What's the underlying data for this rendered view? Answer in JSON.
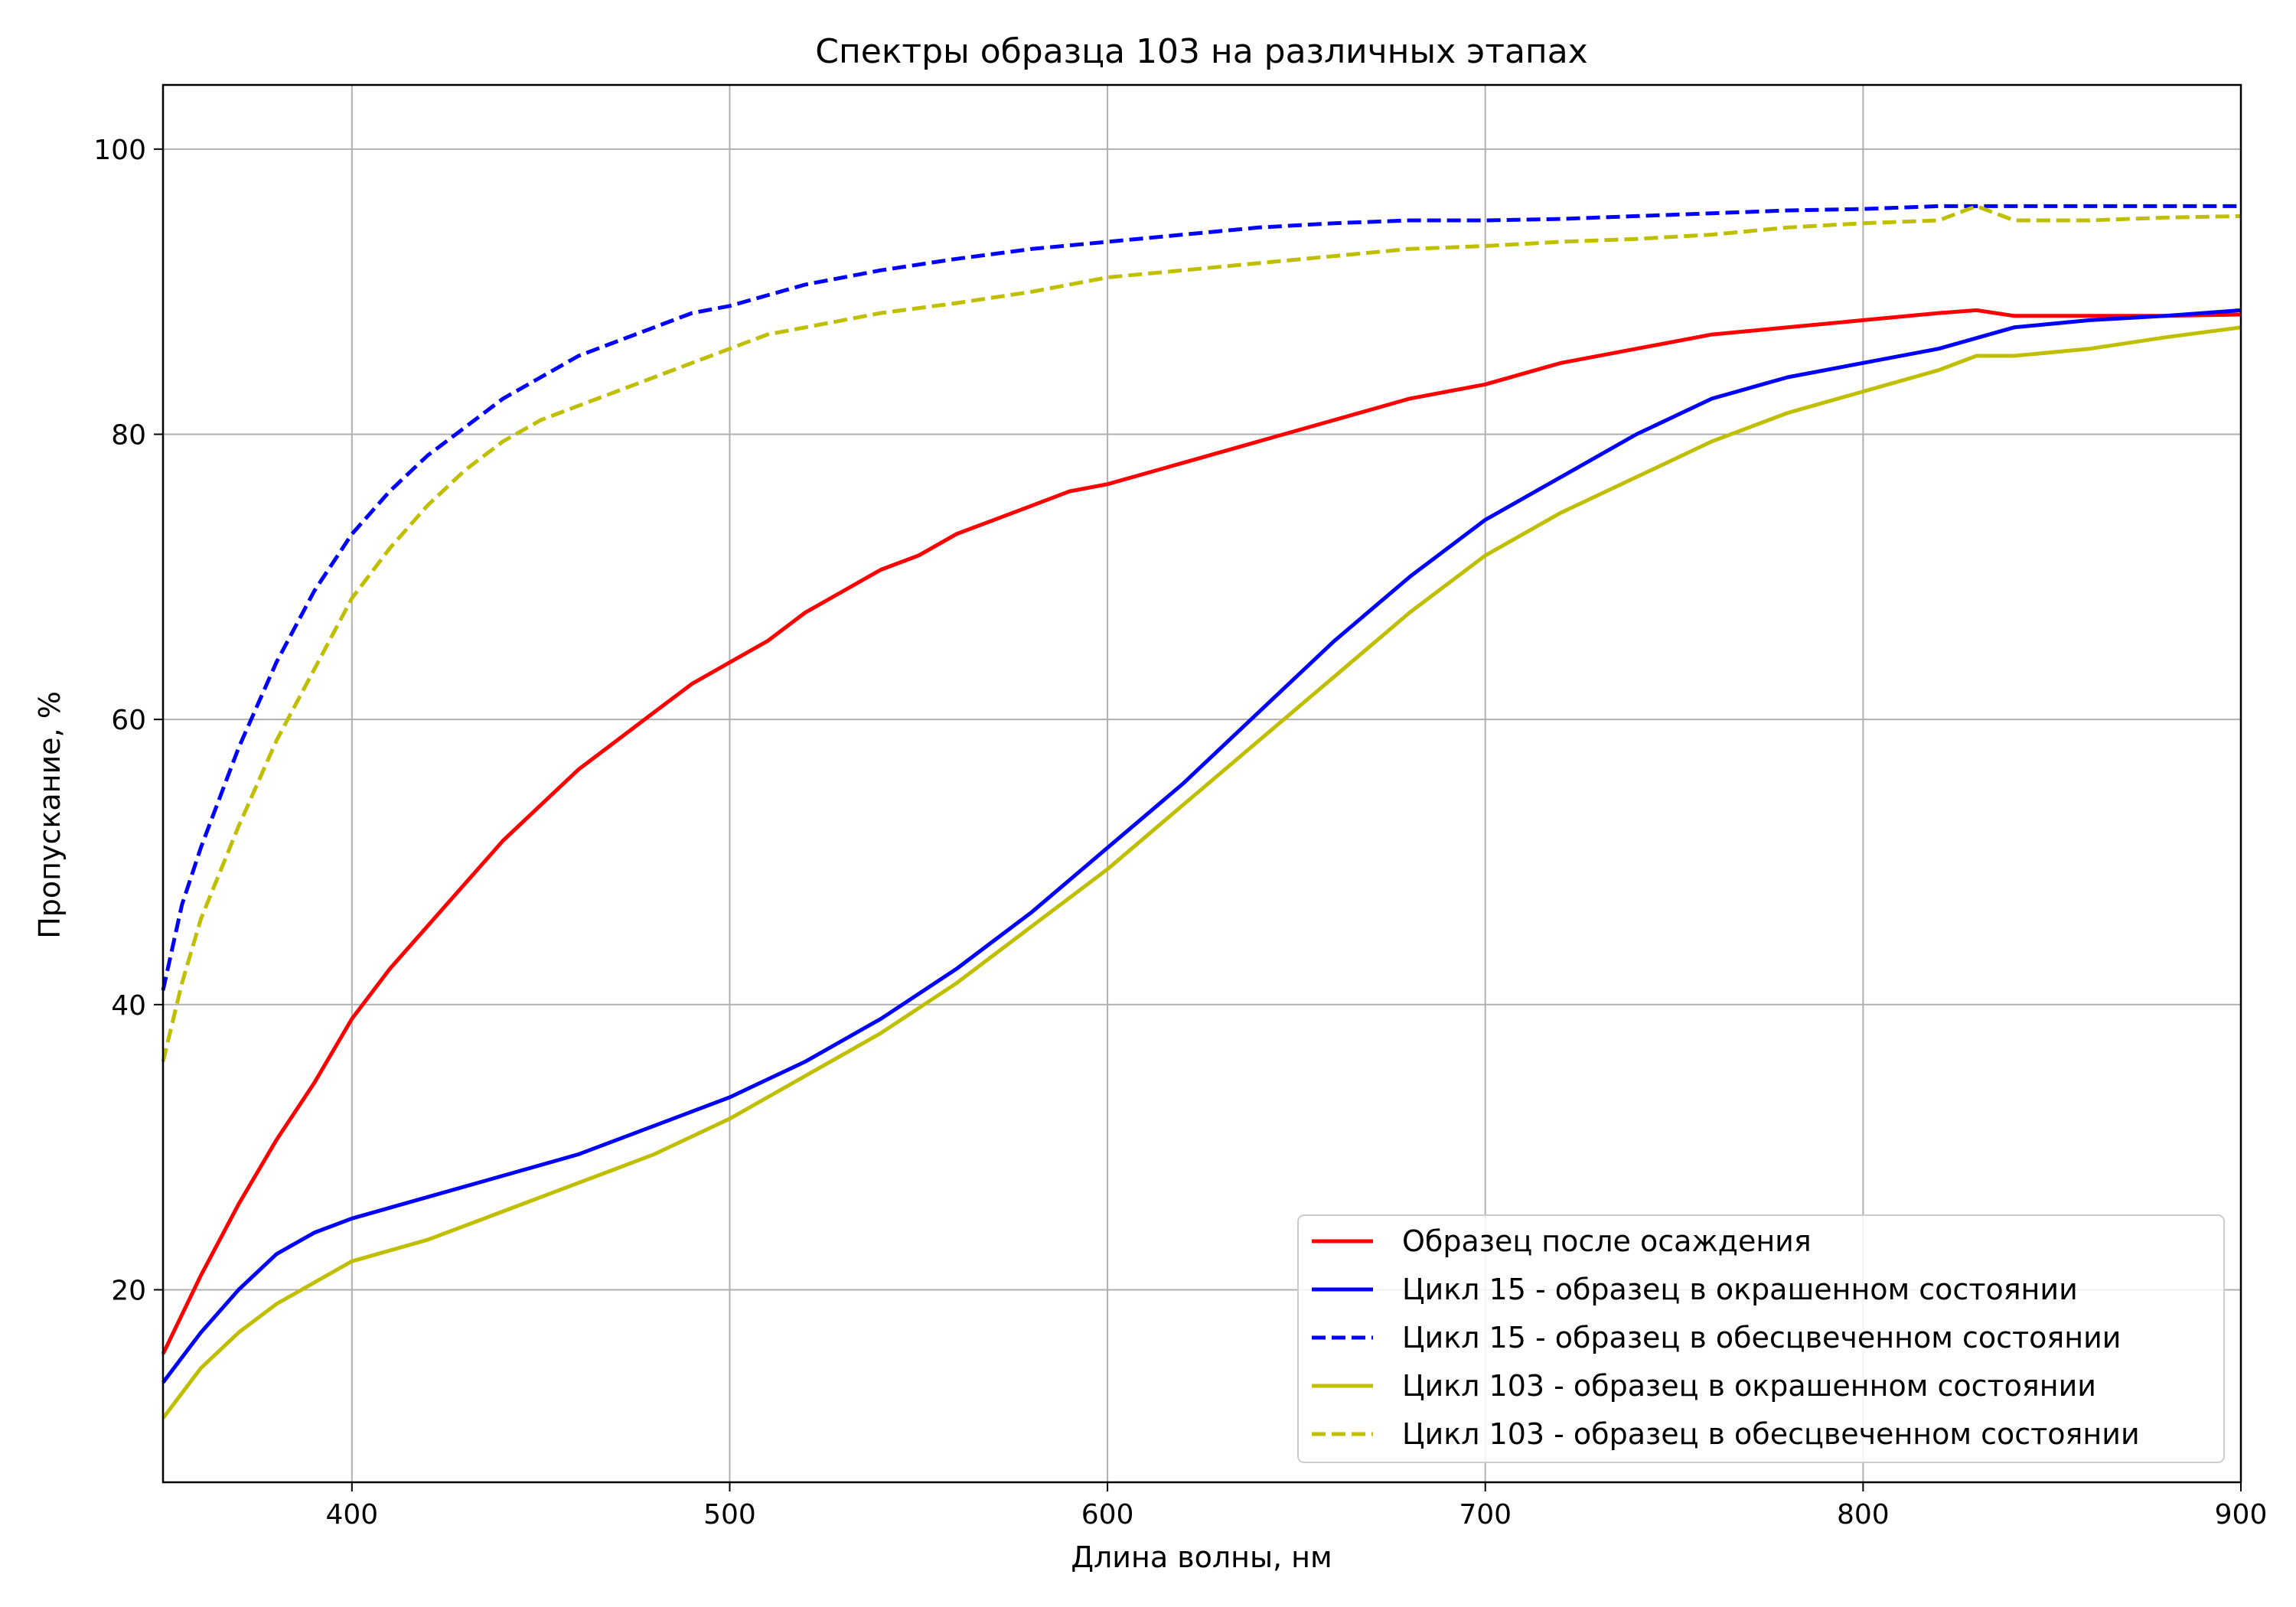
{
  "chart_data": {
    "type": "line",
    "title": "Спектры образца 103 на различных этапах",
    "xlabel": "Длина волны, нм",
    "ylabel": "Пропускание, %",
    "xlim": [
      350,
      900
    ],
    "ylim": [
      6.5,
      104.5
    ],
    "xticks": [
      400,
      500,
      600,
      700,
      800,
      900
    ],
    "yticks": [
      20,
      40,
      60,
      80,
      100
    ],
    "grid": true,
    "legend_position": "bottom-right",
    "series": [
      {
        "name": "Образец после осаждения",
        "color": "#ff0000",
        "dash": "solid",
        "x": [
          350,
          360,
          370,
          380,
          390,
          400,
          410,
          420,
          430,
          440,
          450,
          460,
          470,
          480,
          490,
          500,
          510,
          520,
          530,
          540,
          550,
          560,
          570,
          580,
          590,
          600,
          620,
          640,
          660,
          680,
          700,
          720,
          740,
          760,
          780,
          800,
          820,
          830,
          840,
          860,
          880,
          900
        ],
        "y": [
          15.5,
          21,
          26,
          30.5,
          34.5,
          39,
          42.5,
          45.5,
          48.5,
          51.5,
          54,
          56.5,
          58.5,
          60.5,
          62.5,
          64,
          65.5,
          67.5,
          69,
          70.5,
          71.5,
          73,
          74,
          75,
          76,
          76.5,
          78,
          79.5,
          81,
          82.5,
          83.5,
          85,
          86,
          87,
          87.5,
          88,
          88.5,
          88.7,
          88.3,
          88.3,
          88.3,
          88.4
        ]
      },
      {
        "name": "Цикл 15 - образец в окрашенном состоянии",
        "color": "#0000ff",
        "dash": "solid",
        "x": [
          350,
          360,
          370,
          380,
          390,
          400,
          420,
          440,
          460,
          480,
          500,
          520,
          540,
          560,
          580,
          600,
          620,
          640,
          660,
          680,
          700,
          720,
          740,
          760,
          780,
          800,
          820,
          840,
          860,
          880,
          900
        ],
        "y": [
          13.5,
          17,
          20,
          22.5,
          24,
          25,
          26.5,
          28,
          29.5,
          31.5,
          33.5,
          36,
          39,
          42.5,
          46.5,
          51,
          55.5,
          60.5,
          65.5,
          70,
          74,
          77,
          80,
          82.5,
          84,
          85,
          86,
          87.5,
          88,
          88.3,
          88.7
        ]
      },
      {
        "name": "Цикл 15 - образец в обесцвеченном состоянии",
        "color": "#0000ff",
        "dash": "dashed",
        "x": [
          350,
          355,
          360,
          370,
          380,
          390,
          400,
          410,
          420,
          430,
          440,
          450,
          460,
          470,
          480,
          490,
          500,
          520,
          540,
          560,
          580,
          600,
          620,
          640,
          660,
          680,
          700,
          720,
          740,
          760,
          780,
          800,
          820,
          840,
          860,
          880,
          900
        ],
        "y": [
          41,
          47,
          51,
          58,
          64,
          69,
          73,
          76,
          78.5,
          80.5,
          82.5,
          84,
          85.5,
          86.5,
          87.5,
          88.5,
          89,
          90.5,
          91.5,
          92.3,
          93,
          93.5,
          94,
          94.5,
          94.8,
          95,
          95,
          95.1,
          95.3,
          95.5,
          95.7,
          95.8,
          96,
          96,
          96,
          96,
          96
        ]
      },
      {
        "name": "Цикл 103 - образец в окрашенном состоянии",
        "color": "#bfbf00",
        "dash": "solid",
        "x": [
          350,
          360,
          370,
          380,
          390,
          400,
          420,
          440,
          460,
          470,
          480,
          500,
          520,
          540,
          560,
          580,
          600,
          620,
          640,
          660,
          680,
          700,
          720,
          740,
          760,
          780,
          800,
          820,
          830,
          840,
          860,
          880,
          900
        ],
        "y": [
          11,
          14.5,
          17,
          19,
          20.5,
          22,
          23.5,
          25.5,
          27.5,
          28.5,
          29.5,
          32,
          35,
          38,
          41.5,
          45.5,
          49.5,
          54,
          58.5,
          63,
          67.5,
          71.5,
          74.5,
          77,
          79.5,
          81.5,
          83,
          84.5,
          85.5,
          85.5,
          86,
          86.8,
          87.5
        ]
      },
      {
        "name": "Цикл 103 - образец в обесцвеченном состоянии",
        "color": "#bfbf00",
        "dash": "dashed",
        "x": [
          350,
          355,
          360,
          370,
          380,
          390,
          400,
          410,
          420,
          430,
          440,
          450,
          460,
          470,
          480,
          490,
          500,
          510,
          520,
          540,
          560,
          580,
          600,
          620,
          640,
          660,
          680,
          700,
          720,
          740,
          760,
          780,
          800,
          820,
          830,
          840,
          860,
          880,
          900
        ],
        "y": [
          36,
          41.5,
          46,
          52.5,
          58.5,
          63.5,
          68.5,
          72,
          75,
          77.5,
          79.5,
          81,
          82,
          83,
          84,
          85,
          86,
          87,
          87.5,
          88.5,
          89.2,
          90,
          91,
          91.5,
          92,
          92.5,
          93,
          93.2,
          93.5,
          93.7,
          94,
          94.5,
          94.8,
          95,
          96,
          95,
          95,
          95.2,
          95.3
        ]
      }
    ]
  }
}
